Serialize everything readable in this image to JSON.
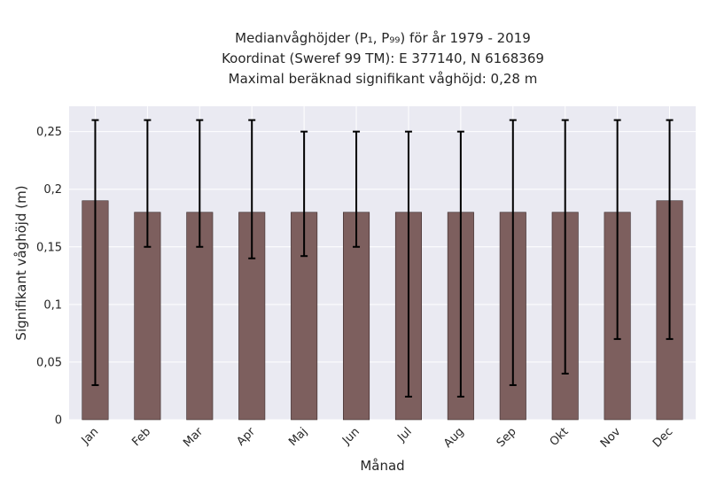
{
  "chart_data": {
    "type": "bar",
    "title_lines": [
      "Medianvåghöjder (P₁, P₉₉) för år 1979 - 2019",
      "Koordinat (Sweref 99 TM): E 377140, N 6168369",
      "Maximal beräknad signifikant våghöjd: 0,28 m"
    ],
    "xlabel": "Månad",
    "ylabel": "Signifikant våghöjd (m)",
    "categories": [
      "Jan",
      "Feb",
      "Mar",
      "Apr",
      "Maj",
      "Jun",
      "Jul",
      "Aug",
      "Sep",
      "Okt",
      "Nov",
      "Dec"
    ],
    "series": [
      {
        "values": [
          0.19,
          0.18,
          0.18,
          0.18,
          0.18,
          0.18,
          0.18,
          0.18,
          0.18,
          0.18,
          0.18,
          0.19
        ],
        "p1": [
          0.03,
          0.15,
          0.15,
          0.14,
          0.142,
          0.15,
          0.02,
          0.02,
          0.03,
          0.04,
          0.07,
          0.07
        ],
        "p99": [
          0.26,
          0.26,
          0.26,
          0.26,
          0.25,
          0.25,
          0.25,
          0.25,
          0.26,
          0.26,
          0.26,
          0.26
        ]
      }
    ],
    "ylim": [
      0,
      0.272
    ],
    "yticks": [
      0,
      0.05,
      0.1,
      0.15,
      0.2,
      0.25
    ],
    "ytick_labels": [
      "0",
      "0,05",
      "0,1",
      "0,15",
      "0,2",
      "0,25"
    ],
    "grid": true,
    "colors": {
      "bar": "#7d5f5e",
      "bar_edge": "#3a2a2a",
      "errorbar": "#000000",
      "plot_background": "#eaeaf2",
      "grid": "#ffffff"
    }
  }
}
